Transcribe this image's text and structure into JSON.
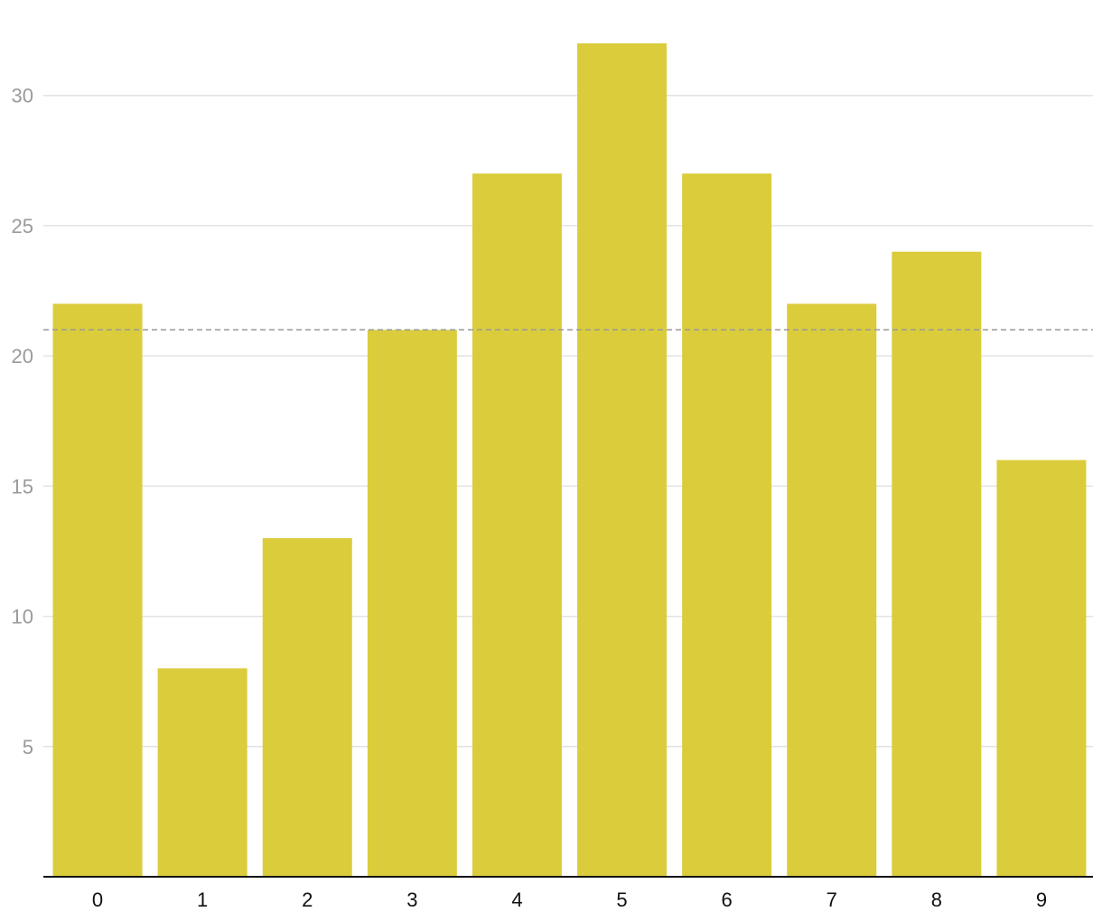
{
  "chart_data": {
    "type": "bar",
    "categories": [
      "0",
      "1",
      "2",
      "3",
      "4",
      "5",
      "6",
      "7",
      "8",
      "9"
    ],
    "values": [
      22,
      8,
      13,
      21,
      27,
      32,
      27,
      22,
      24,
      16
    ],
    "y_ticks": [
      5,
      10,
      15,
      20,
      25,
      30
    ],
    "ylim": [
      0,
      32
    ],
    "reference_line": 21,
    "grid": true,
    "bar_color": "#dbcc3c",
    "grid_color": "#e2e2e2",
    "reference_line_color": "#999999",
    "title": "",
    "xlabel": "",
    "ylabel": ""
  }
}
